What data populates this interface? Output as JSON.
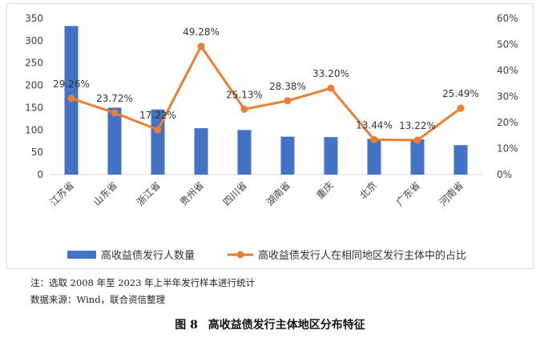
{
  "chart_data": {
    "type": "bar+line",
    "categories": [
      "江苏省",
      "山东省",
      "浙江省",
      "贵州省",
      "四川省",
      "湖南省",
      "重庆",
      "北京",
      "广东省",
      "河南省"
    ],
    "series": [
      {
        "name": "高收益债发行人数量",
        "type": "bar",
        "axis": "left",
        "values": [
          333,
          150,
          146,
          104,
          100,
          85,
          84,
          80,
          79,
          66
        ]
      },
      {
        "name": "高收益债发行人在相同地区发行主体中的占比",
        "type": "line",
        "axis": "right",
        "values": [
          29.26,
          23.72,
          17.22,
          49.28,
          25.13,
          28.38,
          33.2,
          13.44,
          13.22,
          25.49
        ],
        "labels": [
          "29.26%",
          "23.72%",
          "17.22%",
          "49.28%",
          "25.13%",
          "28.38%",
          "33.20%",
          "13.44%",
          "13.22%",
          "25.49%"
        ]
      }
    ],
    "y_left": {
      "range": [
        0,
        350
      ],
      "ticks": [
        "0",
        "50",
        "100",
        "150",
        "200",
        "250",
        "300",
        "350"
      ]
    },
    "y_right": {
      "range": [
        0,
        60
      ],
      "ticks": [
        "0%",
        "10%",
        "20%",
        "30%",
        "40%",
        "50%",
        "60%"
      ]
    },
    "legend_position": "bottom",
    "colors": {
      "bar": "#4472C4",
      "line": "#ED7D31"
    }
  },
  "note": "注：选取 2008 年至 2023 年上半年发行样本进行统计",
  "source": "数据来源：Wind，联合资信整理",
  "caption": {
    "label": "图 8",
    "title": "高收益债发行主体地区分布特征"
  }
}
